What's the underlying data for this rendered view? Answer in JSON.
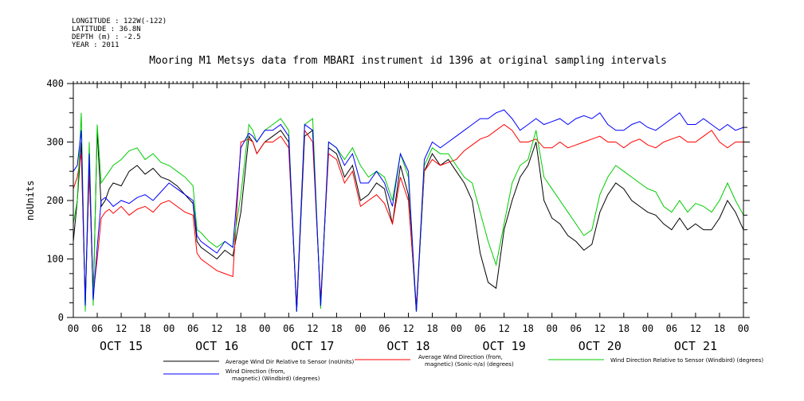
{
  "meta": {
    "longitude": "LONGITUDE : 122W(-122)",
    "latitude": "LATITUDE : 36.8N",
    "depth": "DEPTH (m) : -2.5",
    "year": "YEAR : 2011"
  },
  "chart_data": {
    "type": "line",
    "title": "Mooring M1 Metsys data from MBARI instrument id 1396 at original sampling intervals",
    "ylabel": "noUnits",
    "xlabel": "",
    "ylim": [
      0,
      400
    ],
    "y_ticks": [
      "0",
      "100",
      "200",
      "300",
      "400"
    ],
    "xlim_hours": [
      0,
      168
    ],
    "hour_tick_labels": [
      "00",
      "06",
      "12",
      "18",
      "00",
      "06",
      "12",
      "18",
      "00",
      "06",
      "12",
      "18",
      "00",
      "06",
      "12",
      "18",
      "00",
      "06",
      "12",
      "18",
      "00",
      "06",
      "12",
      "18",
      "00",
      "06",
      "12",
      "18",
      "00"
    ],
    "day_labels": [
      "OCT 15",
      "OCT 16",
      "OCT 17",
      "OCT 18",
      "OCT 19",
      "OCT 20",
      "OCT 21"
    ],
    "grid": false,
    "legend_placement": "bottom",
    "series": [
      {
        "name": "Average Wind Dir Relative to Sensor (noUnits)",
        "color": "#000000",
        "x": [
          0,
          1,
          2,
          3,
          4,
          5,
          6,
          7,
          8,
          9,
          10,
          12,
          14,
          16,
          18,
          20,
          22,
          24,
          26,
          28,
          30,
          31,
          32,
          34,
          36,
          38,
          40,
          42,
          44,
          45,
          46,
          48,
          50,
          52,
          54,
          56,
          58,
          60,
          62,
          64,
          66,
          68,
          70,
          72,
          74,
          76,
          78,
          80,
          82,
          84,
          86,
          88,
          90,
          92,
          94,
          96,
          98,
          100,
          102,
          104,
          106,
          108,
          110,
          112,
          114,
          116,
          118,
          120,
          122,
          124,
          126,
          128,
          130,
          132,
          134,
          136,
          138,
          140,
          142,
          144,
          146,
          148,
          150,
          152,
          154,
          156,
          158,
          160,
          162,
          164,
          166,
          168
        ],
        "y": [
          130,
          200,
          300,
          20,
          260,
          30,
          320,
          190,
          200,
          220,
          230,
          225,
          250,
          260,
          245,
          255,
          240,
          235,
          225,
          210,
          195,
          130,
          120,
          110,
          100,
          115,
          105,
          180,
          310,
          300,
          280,
          300,
          310,
          320,
          300,
          10,
          310,
          320,
          20,
          290,
          280,
          240,
          260,
          200,
          210,
          230,
          220,
          160,
          260,
          210,
          10,
          250,
          280,
          260,
          270,
          250,
          230,
          200,
          110,
          60,
          50,
          150,
          200,
          240,
          260,
          300,
          200,
          170,
          160,
          140,
          130,
          115,
          125,
          180,
          210,
          230,
          220,
          200,
          190,
          180,
          175,
          160,
          150,
          170,
          150,
          160,
          150,
          150,
          170,
          200,
          180,
          150
        ]
      },
      {
        "name": "Average Wind Direction (from, magnetic) (Sonic-n/a) (degrees)",
        "color": "#ff0000",
        "x": [
          0,
          1,
          2,
          3,
          4,
          5,
          6,
          7,
          8,
          9,
          10,
          12,
          14,
          16,
          18,
          20,
          22,
          24,
          26,
          28,
          30,
          31,
          32,
          34,
          36,
          38,
          40,
          42,
          44,
          45,
          46,
          48,
          50,
          52,
          54,
          56,
          58,
          60,
          62,
          64,
          66,
          68,
          70,
          72,
          74,
          76,
          78,
          80,
          82,
          84,
          86,
          88,
          90,
          92,
          94,
          96,
          98,
          100,
          102,
          104,
          106,
          108,
          110,
          112,
          114,
          116,
          118,
          120,
          122,
          124,
          126,
          128,
          130,
          132,
          134,
          136,
          138,
          140,
          142,
          144,
          146,
          148,
          150,
          152,
          154,
          156,
          158,
          160,
          162,
          164,
          166,
          168
        ],
        "y": [
          220,
          240,
          280,
          30,
          250,
          40,
          100,
          170,
          180,
          185,
          178,
          190,
          175,
          185,
          190,
          180,
          195,
          200,
          190,
          180,
          175,
          110,
          100,
          90,
          80,
          75,
          70,
          300,
          305,
          300,
          280,
          300,
          300,
          310,
          290,
          20,
          320,
          300,
          30,
          280,
          270,
          230,
          250,
          190,
          200,
          210,
          195,
          160,
          240,
          200,
          20,
          250,
          270,
          260,
          265,
          270,
          285,
          295,
          305,
          310,
          320,
          330,
          320,
          300,
          300,
          305,
          290,
          290,
          300,
          290,
          295,
          300,
          305,
          310,
          300,
          300,
          290,
          300,
          305,
          295,
          290,
          300,
          305,
          310,
          300,
          300,
          310,
          320,
          300,
          290,
          300,
          300
        ]
      },
      {
        "name": "Wind Direction Relative to Sensor (Windbird) (degrees)",
        "color": "#00cc00",
        "x": [
          0,
          1,
          2,
          3,
          4,
          5,
          6,
          7,
          8,
          9,
          10,
          12,
          14,
          16,
          18,
          20,
          22,
          24,
          26,
          28,
          30,
          31,
          32,
          34,
          36,
          38,
          40,
          42,
          44,
          45,
          46,
          48,
          50,
          52,
          54,
          56,
          58,
          60,
          62,
          64,
          66,
          68,
          70,
          72,
          74,
          76,
          78,
          80,
          82,
          84,
          86,
          88,
          90,
          92,
          94,
          96,
          98,
          100,
          102,
          104,
          106,
          108,
          110,
          112,
          114,
          116,
          118,
          120,
          122,
          124,
          126,
          128,
          130,
          132,
          134,
          136,
          138,
          140,
          142,
          144,
          146,
          148,
          150,
          152,
          154,
          156,
          158,
          160,
          162,
          164,
          166,
          168
        ],
        "y": [
          160,
          200,
          350,
          10,
          300,
          20,
          330,
          230,
          240,
          250,
          260,
          270,
          285,
          290,
          270,
          280,
          265,
          260,
          250,
          240,
          225,
          150,
          145,
          130,
          120,
          130,
          120,
          210,
          330,
          320,
          300,
          320,
          330,
          340,
          320,
          10,
          330,
          340,
          15,
          300,
          290,
          270,
          290,
          260,
          240,
          250,
          240,
          200,
          280,
          240,
          10,
          260,
          290,
          280,
          280,
          260,
          240,
          230,
          180,
          130,
          90,
          160,
          230,
          260,
          270,
          320,
          240,
          220,
          200,
          180,
          160,
          140,
          150,
          210,
          240,
          260,
          250,
          240,
          230,
          220,
          215,
          190,
          180,
          200,
          180,
          195,
          190,
          180,
          200,
          230,
          200,
          175
        ]
      },
      {
        "name": "Wind Direction (from, magnetic) (Windbird) (degrees)",
        "color": "#0000ff",
        "x": [
          0,
          1,
          2,
          3,
          4,
          5,
          6,
          7,
          8,
          9,
          10,
          12,
          14,
          16,
          18,
          20,
          22,
          24,
          26,
          28,
          30,
          31,
          32,
          34,
          36,
          38,
          40,
          42,
          44,
          45,
          46,
          48,
          50,
          52,
          54,
          56,
          58,
          60,
          62,
          64,
          66,
          68,
          70,
          72,
          74,
          76,
          78,
          80,
          82,
          84,
          86,
          88,
          90,
          92,
          94,
          96,
          98,
          100,
          102,
          104,
          106,
          108,
          110,
          112,
          114,
          116,
          118,
          120,
          122,
          124,
          126,
          128,
          130,
          132,
          134,
          136,
          138,
          140,
          142,
          144,
          146,
          148,
          150,
          152,
          154,
          156,
          158,
          160,
          162,
          164,
          166,
          168
        ],
        "y": [
          250,
          260,
          320,
          20,
          280,
          30,
          120,
          200,
          205,
          198,
          190,
          200,
          195,
          205,
          210,
          200,
          215,
          230,
          220,
          210,
          200,
          140,
          130,
          120,
          110,
          130,
          120,
          290,
          315,
          310,
          300,
          320,
          320,
          330,
          310,
          10,
          330,
          320,
          20,
          300,
          290,
          260,
          280,
          230,
          230,
          250,
          230,
          190,
          280,
          250,
          10,
          270,
          300,
          290,
          300,
          310,
          320,
          330,
          340,
          340,
          350,
          355,
          340,
          320,
          330,
          340,
          330,
          335,
          340,
          330,
          340,
          345,
          340,
          350,
          330,
          320,
          320,
          330,
          335,
          325,
          320,
          330,
          340,
          350,
          330,
          330,
          340,
          330,
          320,
          330,
          320,
          325
        ]
      }
    ]
  }
}
